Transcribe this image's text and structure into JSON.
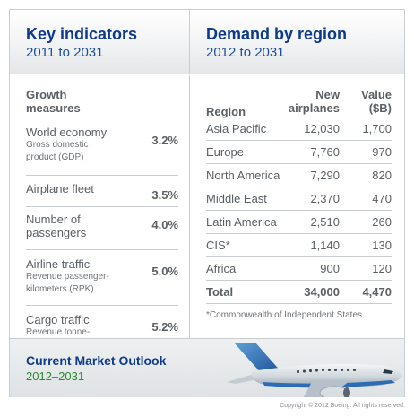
{
  "left_header": {
    "title": "Key indicators",
    "subtitle": "2011 to 2031"
  },
  "right_header": {
    "title": "Demand by region",
    "subtitle": "2012 to 2031"
  },
  "growth": {
    "heading": "Growth\nmeasures",
    "rows": [
      {
        "name": "World economy",
        "desc": "Gross domestic\nproduct (GDP)",
        "value": "3.2%"
      },
      {
        "name": "Airplane fleet",
        "desc": "",
        "value": "3.5%"
      },
      {
        "name": "Number of\npassengers",
        "desc": "",
        "value": "4.0%"
      },
      {
        "name": "Airline traffic",
        "desc": "Revenue passenger-\nkilometers (RPK)",
        "value": "5.0%"
      },
      {
        "name": "Cargo traffic",
        "desc": "Revenue tonne-\nkilometers (RTK)",
        "value": "5.2%"
      }
    ]
  },
  "regions": {
    "headers": {
      "region": "Region",
      "airplanes": "New\nairplanes",
      "value": "Value\n($B)"
    },
    "rows": [
      {
        "region": "Asia Pacific",
        "airplanes": "12,030",
        "value": "1,700"
      },
      {
        "region": "Europe",
        "airplanes": "7,760",
        "value": "970"
      },
      {
        "region": "North America",
        "airplanes": "7,290",
        "value": "820"
      },
      {
        "region": "Middle East",
        "airplanes": "2,370",
        "value": "470"
      },
      {
        "region": "Latin America",
        "airplanes": "2,510",
        "value": "260"
      },
      {
        "region": "CIS*",
        "airplanes": "1,140",
        "value": "130"
      },
      {
        "region": "Africa",
        "airplanes": "900",
        "value": "120"
      }
    ],
    "total": {
      "region": "Total",
      "airplanes": "34,000",
      "value": "4,470"
    },
    "note": "*Commonwealth of Independent States."
  },
  "footer": {
    "title": "Current Market Outlook",
    "subtitle": "2012–2031"
  },
  "copyright": "Copyright © 2012 Boeing. All rights reserved.",
  "colors": {
    "brand_blue": "#0d3a8a",
    "accent_green": "#2b8a2e",
    "text_gray": "#5b6065"
  }
}
